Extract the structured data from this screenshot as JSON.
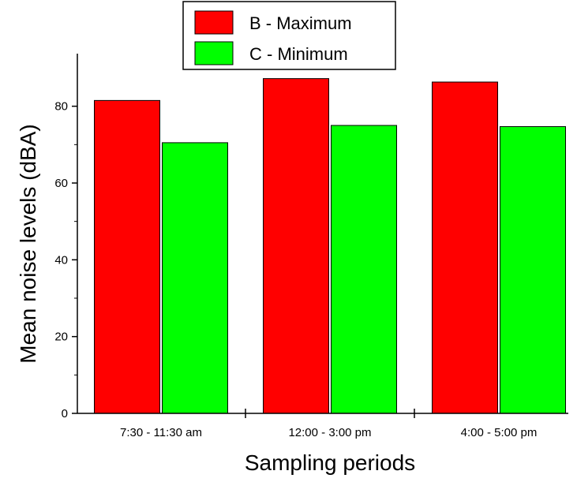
{
  "chart_data": {
    "type": "bar",
    "categories": [
      "7:30 - 11:30 am",
      "12:00 - 3:00 pm",
      "4:00 - 5:00 pm"
    ],
    "series": [
      {
        "name": "B - Maximum",
        "values": [
          81.5,
          87.2,
          86.3
        ],
        "color": "#ff0000"
      },
      {
        "name": "C - Minimum",
        "values": [
          70.5,
          75.0,
          74.7
        ],
        "color": "#00ff00"
      }
    ],
    "xlabel": "Sampling periods",
    "ylabel": "Mean noise levels (dBA)",
    "ylim": [
      0,
      90
    ],
    "yticks": [
      0,
      20,
      40,
      60,
      80
    ],
    "grid": false,
    "legend_position": "top-center"
  }
}
